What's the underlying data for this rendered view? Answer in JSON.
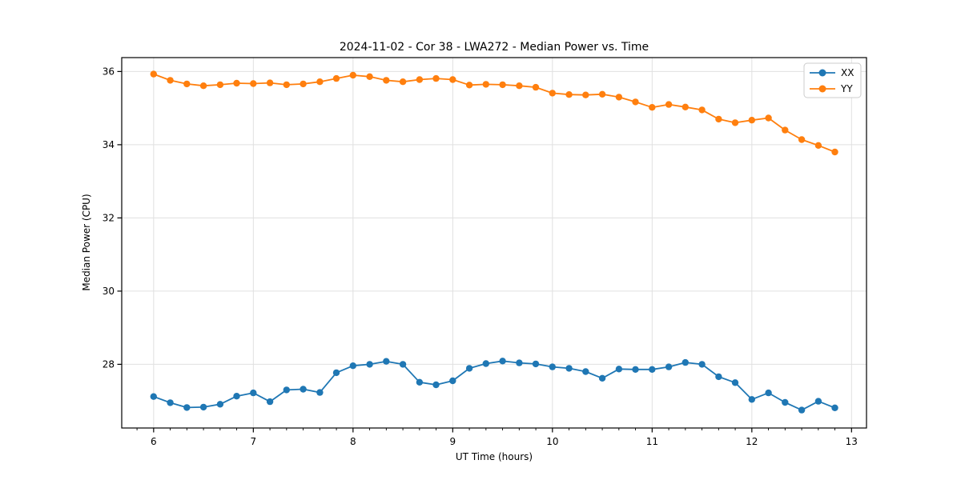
{
  "figure": {
    "background": "#ffffff"
  },
  "chart_data": {
    "type": "line",
    "title": "2024-11-02 - Cor 38 - LWA272 - Median Power vs. Time",
    "xlabel": "UT Time (hours)",
    "ylabel": "Median Power (CPU)",
    "xlim": [
      5.68,
      13.15
    ],
    "ylim": [
      26.26,
      36.38
    ],
    "xticks": [
      6,
      7,
      8,
      9,
      10,
      11,
      12,
      13
    ],
    "yticks": [
      28,
      30,
      32,
      34,
      36
    ],
    "x_minor_step": 0.1667,
    "grid": true,
    "legend_position": "upper right",
    "x": [
      6.0,
      6.167,
      6.333,
      6.5,
      6.667,
      6.833,
      7.0,
      7.167,
      7.333,
      7.5,
      7.667,
      7.833,
      8.0,
      8.167,
      8.333,
      8.5,
      8.667,
      8.833,
      9.0,
      9.167,
      9.333,
      9.5,
      9.667,
      9.833,
      10.0,
      10.167,
      10.333,
      10.5,
      10.667,
      10.833,
      11.0,
      11.167,
      11.333,
      11.5,
      11.667,
      11.833,
      12.0,
      12.167,
      12.333,
      12.5,
      12.667,
      12.833
    ],
    "series": [
      {
        "name": "XX",
        "color": "#1f77b4",
        "marker": "circle",
        "values": [
          27.12,
          26.95,
          26.82,
          26.83,
          26.91,
          27.13,
          27.22,
          26.98,
          27.3,
          27.32,
          27.23,
          27.77,
          27.96,
          28.0,
          28.08,
          28.0,
          27.51,
          27.44,
          27.55,
          27.89,
          28.02,
          28.09,
          28.04,
          28.01,
          27.93,
          27.89,
          27.8,
          27.62,
          27.87,
          27.86,
          27.86,
          27.93,
          28.05,
          28.0,
          27.66,
          27.5,
          27.04,
          27.22,
          26.96,
          26.75,
          26.99,
          26.81
        ]
      },
      {
        "name": "YY",
        "color": "#ff7f0e",
        "marker": "circle",
        "values": [
          35.93,
          35.76,
          35.66,
          35.61,
          35.64,
          35.68,
          35.67,
          35.69,
          35.64,
          35.66,
          35.72,
          35.81,
          35.9,
          35.86,
          35.76,
          35.72,
          35.78,
          35.81,
          35.78,
          35.63,
          35.65,
          35.64,
          35.61,
          35.57,
          35.41,
          35.37,
          35.36,
          35.38,
          35.3,
          35.17,
          35.02,
          35.1,
          35.03,
          34.95,
          34.7,
          34.6,
          34.67,
          34.73,
          34.4,
          34.14,
          33.98,
          33.8
        ]
      }
    ]
  },
  "style": {
    "grid_color": "#e0e0e0",
    "spine_color": "#000000",
    "tick_color": "#000000",
    "text_color": "#000000",
    "legend_border": "#cccccc",
    "legend_bg": "#ffffff"
  }
}
